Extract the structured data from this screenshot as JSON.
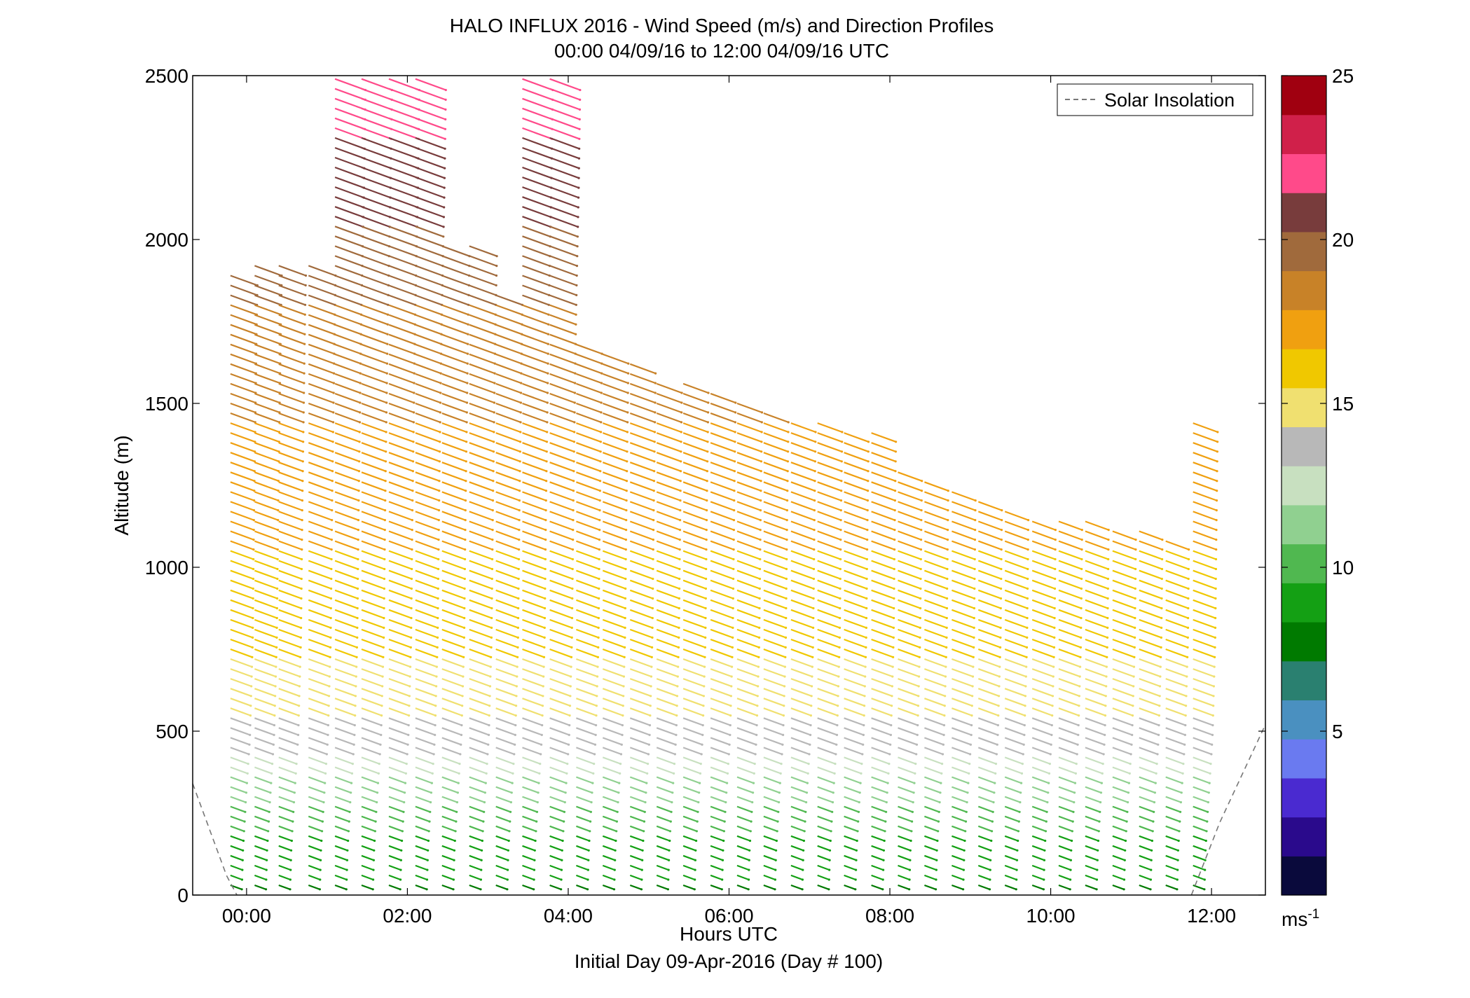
{
  "chart_data": {
    "type": "quiver",
    "title_line1": "HALO INFLUX 2016 - Wind Speed (m/s) and Direction Profiles",
    "title_line2": "00:00 04/09/16 to 12:00 04/09/16  UTC",
    "xlabel": "Hours UTC",
    "xlabel2": "Initial Day 09-Apr-2016 (Day # 100)",
    "ylabel": "Altitude (m)",
    "xlim": [
      -0.67,
      12.67
    ],
    "ylim": [
      0,
      2500
    ],
    "x_ticks": [
      0,
      2,
      4,
      6,
      8,
      10,
      12
    ],
    "x_tick_labels": [
      "00:00",
      "02:00",
      "04:00",
      "06:00",
      "08:00",
      "10:00",
      "12:00"
    ],
    "y_ticks": [
      0,
      500,
      1000,
      1500,
      2000,
      2500
    ],
    "y_tick_labels": [
      "0",
      "500",
      "1000",
      "1500",
      "2000",
      "2500"
    ],
    "legend": {
      "entries": [
        "Solar Insolation"
      ],
      "position": "top-right",
      "line_style": "dashed",
      "line_color": "#777777"
    },
    "colorbar": {
      "range": [
        0,
        25
      ],
      "ticks": [
        5,
        10,
        15,
        20,
        25
      ],
      "tick_labels": [
        "5",
        "10",
        "15",
        "20",
        "25"
      ],
      "unit_label": "ms",
      "unit_exponent": "-1",
      "colors": [
        "#0a0a3c",
        "#2a0a8c",
        "#4a2ad0",
        "#6a7af0",
        "#4a90c0",
        "#2a8070",
        "#007a00",
        "#14a014",
        "#50b850",
        "#90d090",
        "#c8e0c0",
        "#b8b8b8",
        "#f0e070",
        "#f0c800",
        "#f0a010",
        "#c88228",
        "#a06a3c",
        "#783c3c",
        "#ff4a8a",
        "#d0204a",
        "#a00010"
      ]
    },
    "profile_times_hours": [
      -0.2,
      0.1,
      0.4,
      0.77,
      1.1,
      1.43,
      1.77,
      2.1,
      2.43,
      2.77,
      3.1,
      3.43,
      3.77,
      4.1,
      4.43,
      4.77,
      5.1,
      5.43,
      5.77,
      6.1,
      6.43,
      6.77,
      7.1,
      7.43,
      7.77,
      8.1,
      8.43,
      8.77,
      9.1,
      9.43,
      9.77,
      10.1,
      10.43,
      10.77,
      11.1,
      11.43,
      11.77
    ],
    "profile_tops_m": [
      1900,
      1930,
      1920,
      1920,
      2500,
      2500,
      2500,
      2500,
      1980,
      2000,
      1850,
      2500,
      2500,
      1700,
      1650,
      1620,
      1580,
      1560,
      1540,
      1500,
      1480,
      1460,
      1440,
      1430,
      1420,
      1300,
      1280,
      1250,
      1200,
      1180,
      1160,
      1150,
      1140,
      1130,
      1120,
      1100,
      1450
    ],
    "altitude_spacing_m": 30,
    "wind_speed_profile_ms": [
      [
        0,
        8
      ],
      [
        150,
        9
      ],
      [
        300,
        11
      ],
      [
        500,
        14
      ],
      [
        800,
        16
      ],
      [
        1200,
        17
      ],
      [
        1800,
        19
      ],
      [
        2200,
        21
      ],
      [
        2500,
        22
      ]
    ],
    "wind_direction_deg": 290,
    "solar_insolation_curve": {
      "points": [
        [
          -0.67,
          340
        ],
        [
          -0.25,
          60
        ],
        [
          -0.12,
          0
        ],
        [
          11.75,
          0
        ],
        [
          12.1,
          220
        ],
        [
          12.67,
          520
        ]
      ]
    }
  }
}
